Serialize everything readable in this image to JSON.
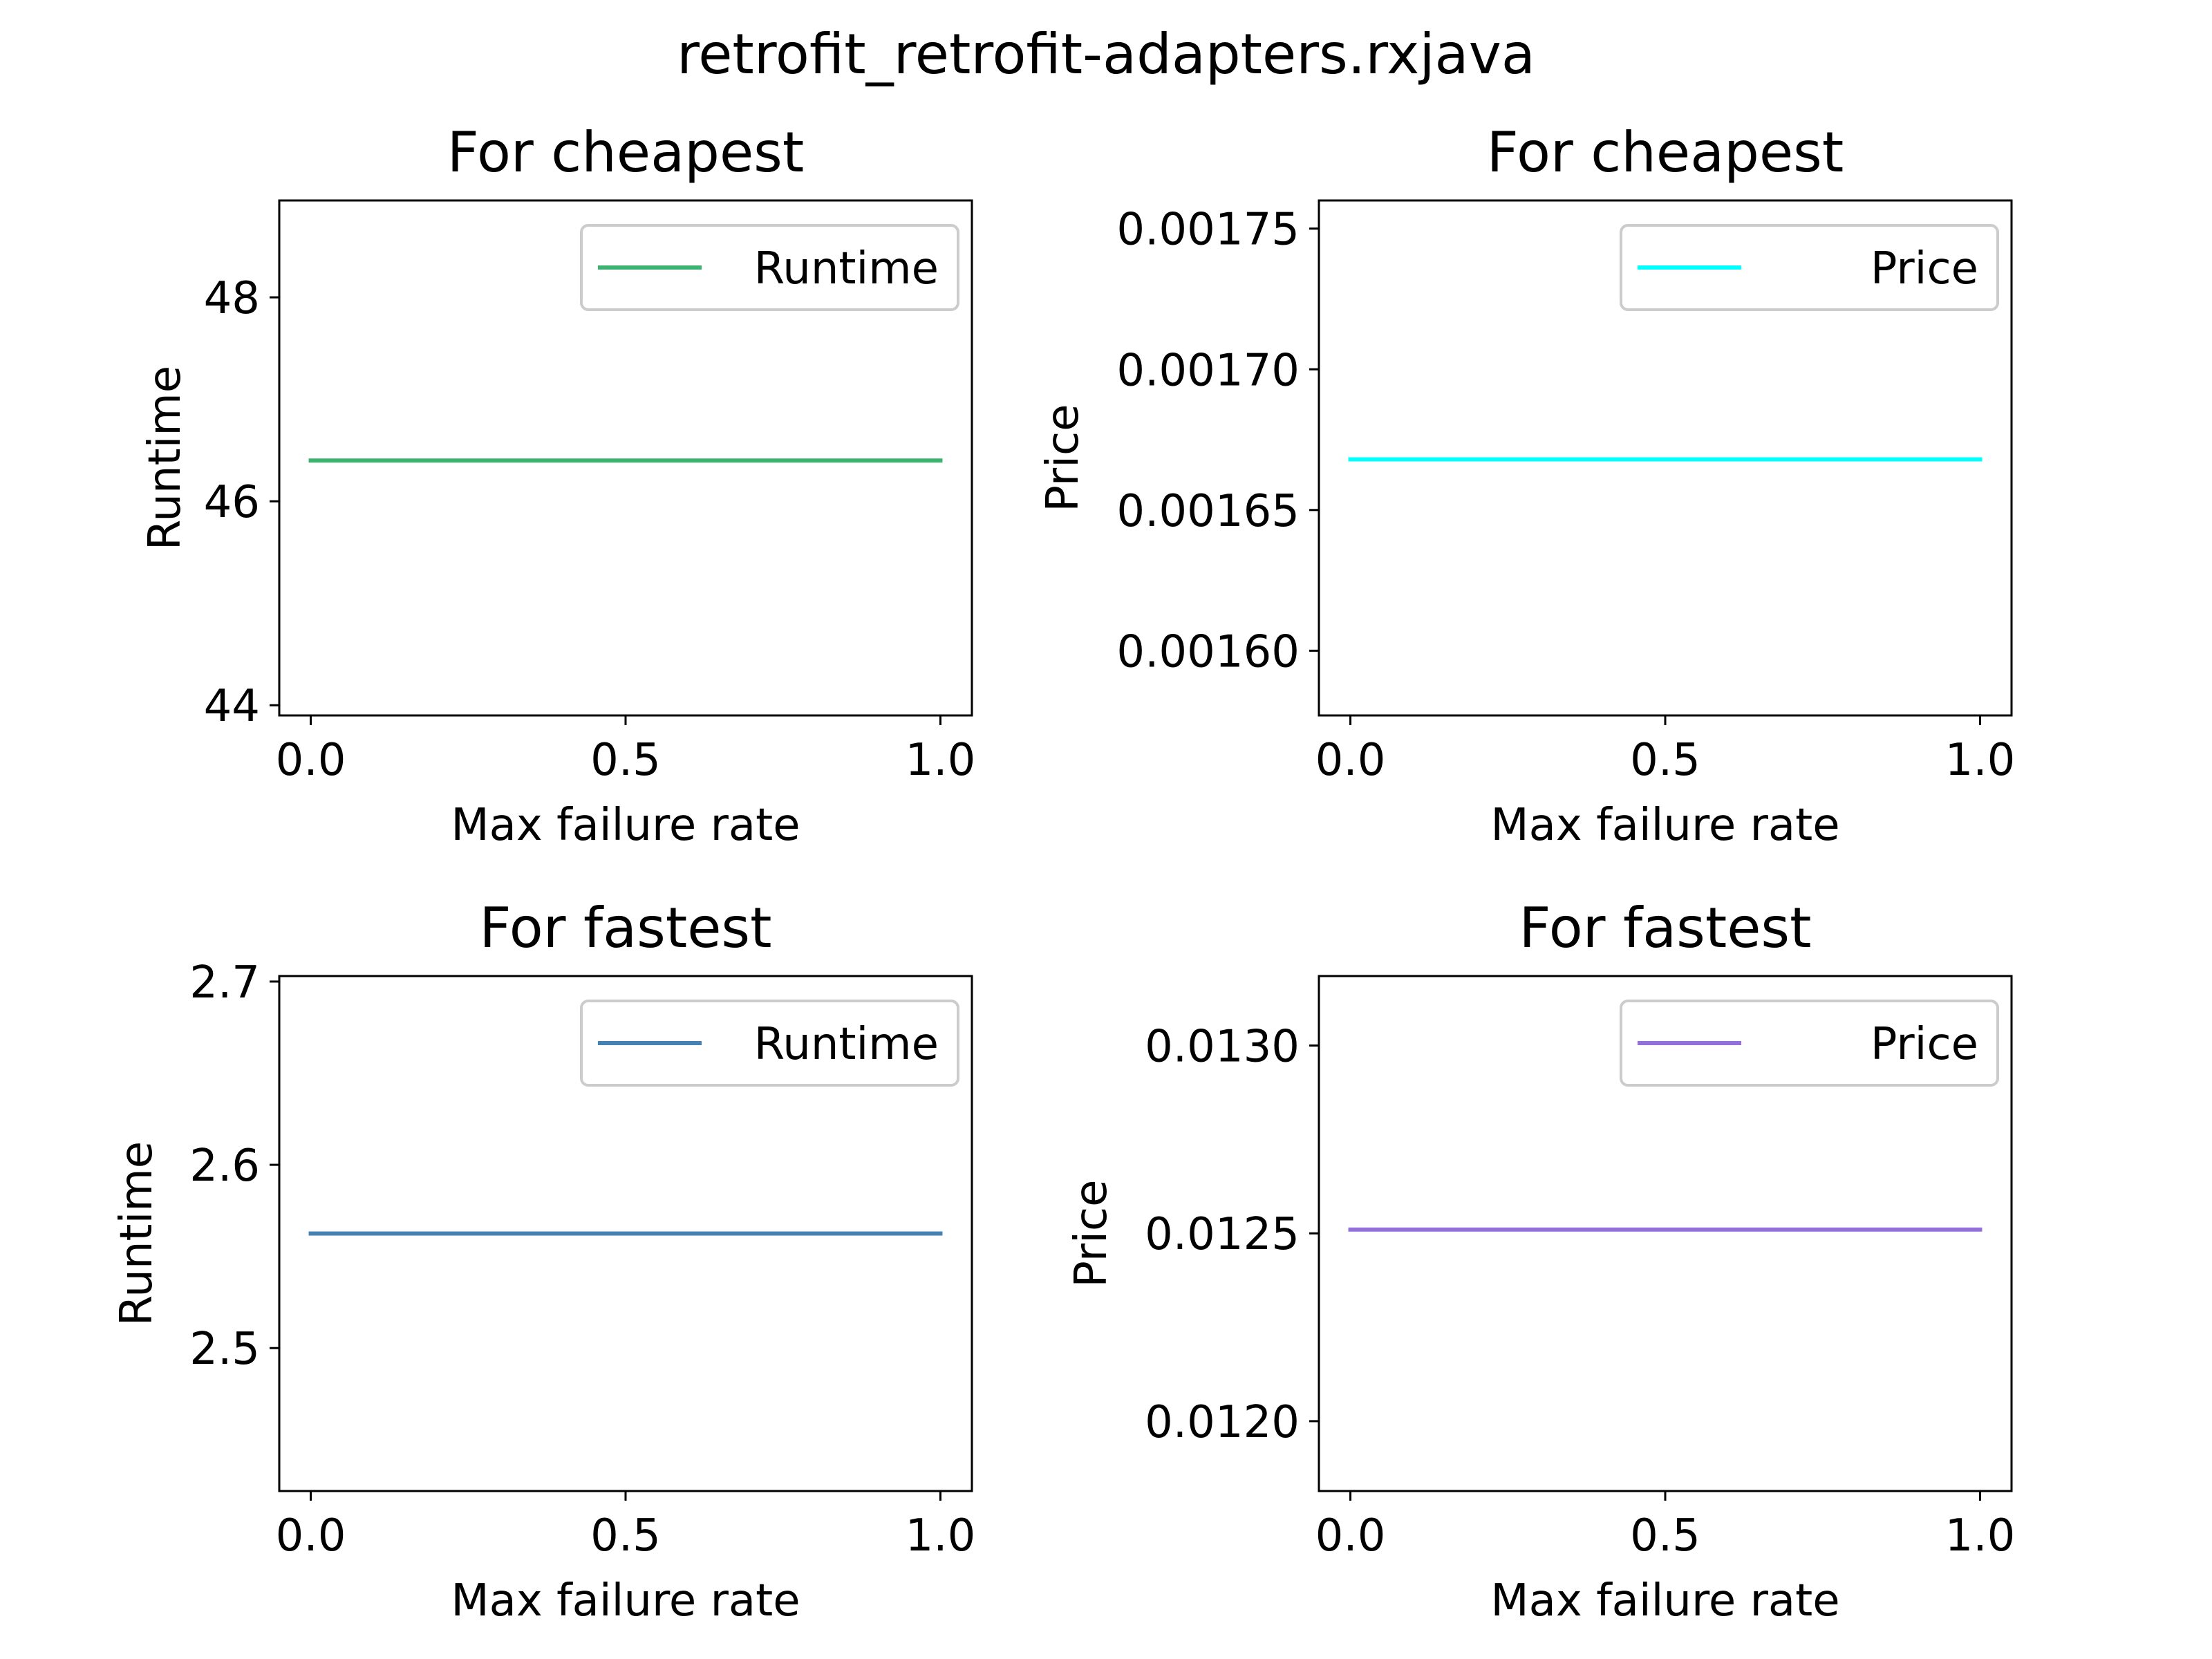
{
  "figure": {
    "suptitle": "retrofit_retrofit-adapters.rxjava"
  },
  "chart_data": [
    {
      "type": "line",
      "title": "For cheapest",
      "xlabel": "Max failure rate",
      "ylabel": "Runtime",
      "x": [
        0.0,
        1.0
      ],
      "series": [
        {
          "name": "Runtime",
          "values": [
            46.4,
            46.4
          ],
          "color": "#3cb371"
        }
      ],
      "xlim": [
        -0.05,
        1.05
      ],
      "ylim": [
        43.9,
        48.95
      ],
      "xticks": [
        0.0,
        0.5,
        1.0
      ],
      "xtick_labels": [
        "0.0",
        "0.5",
        "1.0"
      ],
      "yticks": [
        44,
        46,
        48
      ],
      "ytick_labels": [
        "44",
        "46",
        "48"
      ],
      "legend": "upper-right",
      "grid": false
    },
    {
      "type": "line",
      "title": "For cheapest",
      "xlabel": "Max failure rate",
      "ylabel": "Price",
      "x": [
        0.0,
        1.0
      ],
      "series": [
        {
          "name": "Price",
          "values": [
            0.001668,
            0.001668
          ],
          "color": "#00ffff"
        }
      ],
      "xlim": [
        -0.05,
        1.05
      ],
      "ylim": [
        0.001577,
        0.00176
      ],
      "xticks": [
        0.0,
        0.5,
        1.0
      ],
      "xtick_labels": [
        "0.0",
        "0.5",
        "1.0"
      ],
      "yticks": [
        0.0016,
        0.00165,
        0.0017,
        0.00175
      ],
      "ytick_labels": [
        "0.00160",
        "0.00165",
        "0.00170",
        "0.00175"
      ],
      "legend": "upper-right",
      "grid": false
    },
    {
      "type": "line",
      "title": "For fastest",
      "xlabel": "Max failure rate",
      "ylabel": "Runtime",
      "x": [
        0.0,
        1.0
      ],
      "series": [
        {
          "name": "Runtime",
          "values": [
            2.5625,
            2.5625
          ],
          "color": "#4682b4"
        }
      ],
      "xlim": [
        -0.05,
        1.05
      ],
      "ylim": [
        2.422,
        2.703
      ],
      "xticks": [
        0.0,
        0.5,
        1.0
      ],
      "xtick_labels": [
        "0.0",
        "0.5",
        "1.0"
      ],
      "yticks": [
        2.5,
        2.6,
        2.7
      ],
      "ytick_labels": [
        "2.5",
        "2.6",
        "2.7"
      ],
      "legend": "upper-right",
      "grid": false
    },
    {
      "type": "line",
      "title": "For fastest",
      "xlabel": "Max failure rate",
      "ylabel": "Price",
      "x": [
        0.0,
        1.0
      ],
      "series": [
        {
          "name": "Price",
          "values": [
            0.01251,
            0.01251
          ],
          "color": "#9370db"
        }
      ],
      "xlim": [
        -0.05,
        1.05
      ],
      "ylim": [
        0.011814,
        0.013185
      ],
      "xticks": [
        0.0,
        0.5,
        1.0
      ],
      "xtick_labels": [
        "0.0",
        "0.5",
        "1.0"
      ],
      "yticks": [
        0.012,
        0.0125,
        0.013
      ],
      "ytick_labels": [
        "0.0120",
        "0.0125",
        "0.0130"
      ],
      "legend": "upper-right",
      "grid": false
    }
  ]
}
